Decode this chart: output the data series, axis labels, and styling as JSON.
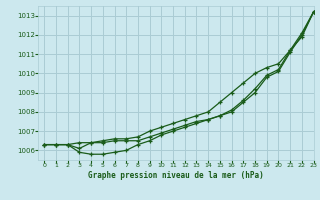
{
  "title": "Graphe pression niveau de la mer (hPa)",
  "background_color": "#cce8ee",
  "grid_color": "#aaccd4",
  "text_color": "#1a5c1a",
  "line_color": "#1a5c1a",
  "xlim": [
    -0.5,
    23
  ],
  "ylim": [
    1005.5,
    1013.5
  ],
  "yticks": [
    1006,
    1007,
    1008,
    1009,
    1010,
    1011,
    1012,
    1013
  ],
  "xticks": [
    0,
    1,
    2,
    3,
    4,
    5,
    6,
    7,
    8,
    9,
    10,
    11,
    12,
    13,
    14,
    15,
    16,
    17,
    18,
    19,
    20,
    21,
    22,
    23
  ],
  "series1": {
    "x": [
      0,
      1,
      2,
      3,
      4,
      5,
      6,
      7,
      8,
      9,
      10,
      11,
      12,
      13,
      14,
      15,
      16,
      17,
      18,
      19,
      20,
      21,
      22,
      23
    ],
    "y": [
      1006.3,
      1006.3,
      1006.3,
      1006.1,
      1006.4,
      1006.4,
      1006.5,
      1006.5,
      1006.5,
      1006.7,
      1006.9,
      1007.1,
      1007.3,
      1007.5,
      1007.6,
      1007.8,
      1008.0,
      1008.5,
      1009.0,
      1009.8,
      1010.1,
      1011.1,
      1012.0,
      1013.2
    ],
    "style": "solid",
    "marker": "+"
  },
  "series2": {
    "x": [
      0,
      1,
      2,
      3,
      4,
      5,
      6,
      7,
      8,
      9,
      10,
      11,
      12,
      13,
      14,
      15,
      16,
      17,
      18,
      19,
      20,
      21,
      22,
      23
    ],
    "y": [
      1006.3,
      1006.3,
      1006.3,
      1005.9,
      1005.8,
      1005.8,
      1005.9,
      1006.0,
      1006.3,
      1006.5,
      1006.8,
      1007.0,
      1007.2,
      1007.4,
      1007.6,
      1007.8,
      1008.1,
      1008.6,
      1009.2,
      1009.9,
      1010.2,
      1011.2,
      1011.9,
      1013.2
    ],
    "style": "solid",
    "marker": "+"
  },
  "series3": {
    "x": [
      0,
      1,
      2,
      3,
      4,
      5,
      6,
      7,
      8,
      9,
      10,
      11,
      12,
      13,
      14,
      15,
      16,
      17,
      18,
      19,
      20,
      21,
      22,
      23
    ],
    "y": [
      1006.3,
      1006.3,
      1006.3,
      1006.4,
      1006.4,
      1006.5,
      1006.6,
      1006.6,
      1006.7,
      1007.0,
      1007.2,
      1007.4,
      1007.6,
      1007.8,
      1008.0,
      1008.5,
      1009.0,
      1009.5,
      1010.0,
      1010.3,
      1010.5,
      1011.2,
      1012.1,
      1013.2
    ],
    "style": "solid",
    "marker": "+"
  }
}
